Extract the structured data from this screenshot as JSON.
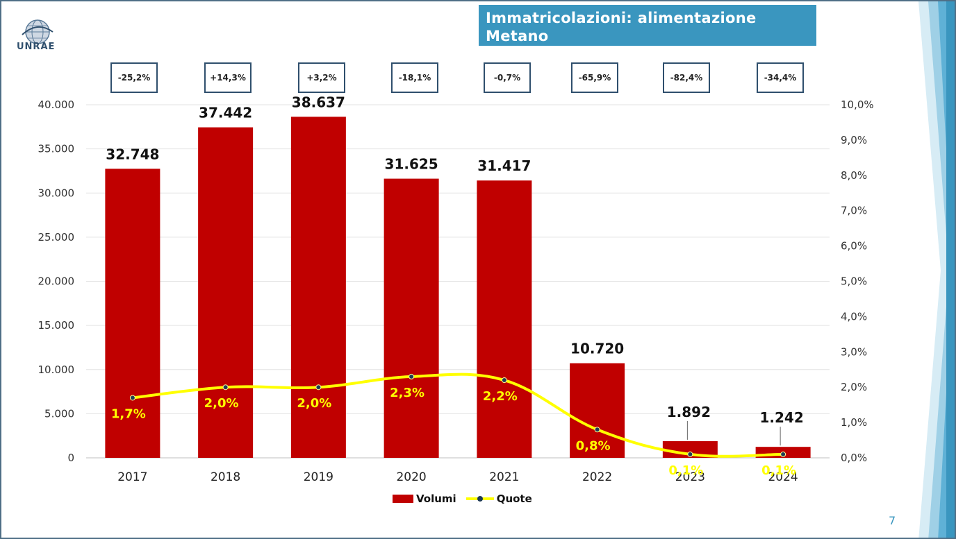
{
  "title": {
    "line1": "Immatricolazioni: alimentazione",
    "line2": "Metano"
  },
  "logo_text": "UNRAE",
  "page_number": "7",
  "growth_labels": [
    "-25,2%",
    "+14,3%",
    "+3,2%",
    "-18,1%",
    "-0,7%",
    "-65,9%",
    "-82,4%",
    "-34,4%"
  ],
  "colors": {
    "bars": "#c00000",
    "line": "#ffff00",
    "markers": "#1e3a56",
    "title_bg": "#3a96bf"
  },
  "chart_data": {
    "type": "bar",
    "categories": [
      "2017",
      "2018",
      "2019",
      "2020",
      "2021",
      "2022",
      "2023",
      "2024"
    ],
    "series": [
      {
        "name": "Volumi",
        "type": "bar",
        "axis": "left",
        "values": [
          32748,
          37442,
          38637,
          31625,
          31417,
          10720,
          1892,
          1242
        ],
        "labels": [
          "32.748",
          "37.442",
          "38.637",
          "31.625",
          "31.417",
          "10.720",
          "1.892",
          "1.242"
        ]
      },
      {
        "name": "Quote",
        "type": "line",
        "axis": "right",
        "values": [
          1.7,
          2.0,
          2.0,
          2.3,
          2.2,
          0.8,
          0.1,
          0.1
        ],
        "labels": [
          "1,7%",
          "2,0%",
          "2,0%",
          "2,3%",
          "2,2%",
          "0,8%",
          "0,1%",
          "0,1%"
        ]
      }
    ],
    "y_left": {
      "range": [
        0,
        40000
      ],
      "ticks": [
        0,
        5000,
        10000,
        15000,
        20000,
        25000,
        30000,
        35000,
        40000
      ],
      "tick_labels": [
        "0",
        "5.000",
        "10.000",
        "15.000",
        "20.000",
        "25.000",
        "30.000",
        "35.000",
        "40.000"
      ]
    },
    "y_right": {
      "range": [
        0,
        10
      ],
      "ticks": [
        0,
        1,
        2,
        3,
        4,
        5,
        6,
        7,
        8,
        9,
        10
      ],
      "tick_labels": [
        "0,0%",
        "1,0%",
        "2,0%",
        "3,0%",
        "4,0%",
        "5,0%",
        "6,0%",
        "7,0%",
        "8,0%",
        "9,0%",
        "10,0%"
      ]
    },
    "grid": true,
    "legend": "bottom"
  }
}
